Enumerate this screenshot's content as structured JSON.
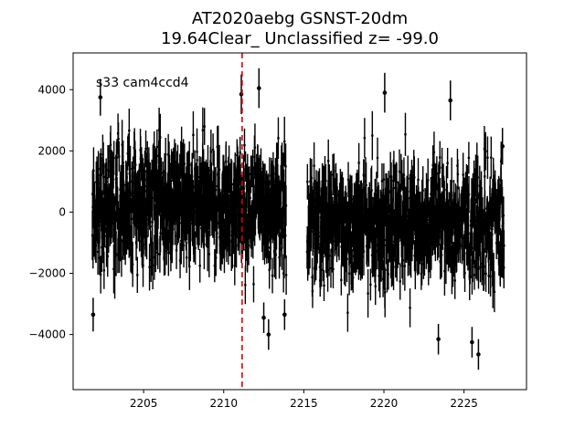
{
  "chart_data": {
    "type": "scatter",
    "title_lines": [
      "AT2020aebg  GSNST-20dm",
      "19.64Clear_ Unclassified z= -99.0"
    ],
    "annotation": "s33 cam4ccd4",
    "xlabel": "",
    "ylabel": "",
    "xlim": [
      2200.6,
      2228.9
    ],
    "ylim": [
      -5800,
      5200
    ],
    "x_ticks": [
      2205,
      2210,
      2215,
      2220,
      2225
    ],
    "y_ticks": [
      -4000,
      -2000,
      0,
      2000,
      4000
    ],
    "grid": false,
    "vline": {
      "x": 2211.15,
      "color": "#dd0000",
      "style": "dashed"
    },
    "marker_color": "#000000",
    "segments": [
      {
        "x_start": 2201.8,
        "x_end": 2213.9,
        "center": 200,
        "spread": 1500,
        "error": 650
      },
      {
        "x_start": 2215.2,
        "x_end": 2227.5,
        "center": -400,
        "spread": 1400,
        "error": 650
      }
    ],
    "highlight_points": [
      {
        "x": 2201.85,
        "y": -3350,
        "err": 550
      },
      {
        "x": 2202.3,
        "y": 3750,
        "err": 600
      },
      {
        "x": 2211.1,
        "y": 3850,
        "err": 650
      },
      {
        "x": 2212.2,
        "y": 4050,
        "err": 650
      },
      {
        "x": 2212.5,
        "y": -3450,
        "err": 500
      },
      {
        "x": 2212.8,
        "y": -4000,
        "err": 500
      },
      {
        "x": 2220.05,
        "y": 3900,
        "err": 650
      },
      {
        "x": 2224.15,
        "y": 3650,
        "err": 650
      },
      {
        "x": 2223.4,
        "y": -4150,
        "err": 500
      },
      {
        "x": 2225.5,
        "y": -4250,
        "err": 500
      },
      {
        "x": 2225.9,
        "y": -4650,
        "err": 500
      },
      {
        "x": 2227.4,
        "y": 2150,
        "err": 600
      },
      {
        "x": 2213.8,
        "y": -3350,
        "err": 500
      }
    ]
  }
}
